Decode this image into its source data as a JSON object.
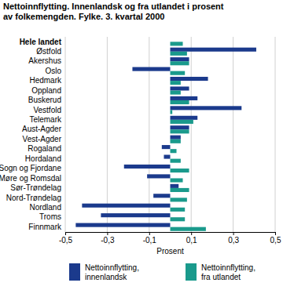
{
  "chart_data": {
    "type": "bar",
    "orientation": "horizontal",
    "title": "Nettoinnflytting. Innenlandsk og fra utlandet i prosent\nav folkemengden. Fylke. 3. kvartal 2000",
    "x_label": "Prosent",
    "categories": [
      "Hele landet",
      "Østfold",
      "Akershus",
      "Oslo",
      "Hedmark",
      "Oppland",
      "Buskerud",
      "Vestfold",
      "Telemark",
      "Aust-Agder",
      "Vest-Agder",
      "Rogaland",
      "Hordaland",
      "Sogn og Fjordane",
      "Møre og Romsdal",
      "Sør-Trøndelag",
      "Nord-Trøndelag",
      "Nordland",
      "Troms",
      "Finnmark"
    ],
    "series": [
      {
        "name": "Nettoinnflytting, innenlandsk",
        "color": "#1b3a8c",
        "values": [
          0,
          0.41,
          0.09,
          -0.18,
          0.18,
          0.09,
          0.13,
          0.34,
          0.13,
          0.09,
          0.05,
          -0.04,
          -0.03,
          -0.22,
          -0.11,
          0.04,
          -0.08,
          -0.42,
          -0.33,
          -0.45
        ]
      },
      {
        "name": "Nettoinnflytting, fra utlandet",
        "color": "#1a9a8c",
        "values": [
          0.06,
          0.08,
          0.09,
          0.07,
          0.05,
          0.05,
          0.09,
          0.01,
          0.11,
          0.09,
          0.05,
          0.03,
          0.05,
          0.09,
          0.06,
          0.09,
          0.08,
          0.07,
          0.07,
          0.17
        ]
      }
    ],
    "xlim": [
      -0.5,
      0.5
    ],
    "xticks": [
      {
        "value": -0.5,
        "label": "-0,5"
      },
      {
        "value": -0.3,
        "label": "-0,3"
      },
      {
        "value": -0.1,
        "label": "-0,1"
      },
      {
        "value": 0.1,
        "label": "0,1"
      },
      {
        "value": 0.3,
        "label": "0,3"
      },
      {
        "value": 0.5,
        "label": "0,5"
      }
    ],
    "grid": true,
    "legend": "bottom"
  }
}
